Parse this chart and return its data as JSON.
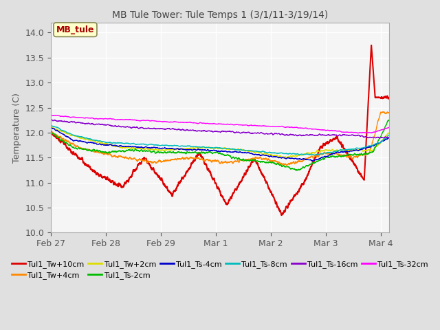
{
  "title": "MB Tule Tower: Tule Temps 1 (3/1/11-3/19/14)",
  "ylabel": "Temperature (C)",
  "xlim_days": [
    0,
    6.15
  ],
  "ylim": [
    10.0,
    14.2
  ],
  "yticks": [
    10.0,
    10.5,
    11.0,
    11.5,
    12.0,
    12.5,
    13.0,
    13.5,
    14.0
  ],
  "xtick_positions": [
    0,
    1,
    2,
    3,
    4,
    5,
    6
  ],
  "xtick_labels": [
    "Feb 27",
    "Feb 28",
    "Feb 29",
    "Mar 1",
    "Mar 2",
    "Mar 3",
    "Mar 4"
  ],
  "legend_box_label": "MB_tule",
  "legend_box_color": "#aa0000",
  "legend_box_bg": "#ffffcc",
  "series": [
    {
      "label": "Tul1_Tw+10cm",
      "color": "#dd0000",
      "lw": 1.5
    },
    {
      "label": "Tul1_Tw+4cm",
      "color": "#ff8800",
      "lw": 1.0
    },
    {
      "label": "Tul1_Tw+2cm",
      "color": "#dddd00",
      "lw": 1.0
    },
    {
      "label": "Tul1_Ts-2cm",
      "color": "#00bb00",
      "lw": 1.0
    },
    {
      "label": "Tul1_Ts-4cm",
      "color": "#0000cc",
      "lw": 1.0
    },
    {
      "label": "Tul1_Ts-8cm",
      "color": "#00bbbb",
      "lw": 1.0
    },
    {
      "label": "Tul1_Ts-16cm",
      "color": "#8800cc",
      "lw": 1.0
    },
    {
      "label": "Tul1_Ts-32cm",
      "color": "#ff00ff",
      "lw": 1.0
    }
  ],
  "bg_color": "#e0e0e0",
  "plot_bg": "#f5f5f5"
}
